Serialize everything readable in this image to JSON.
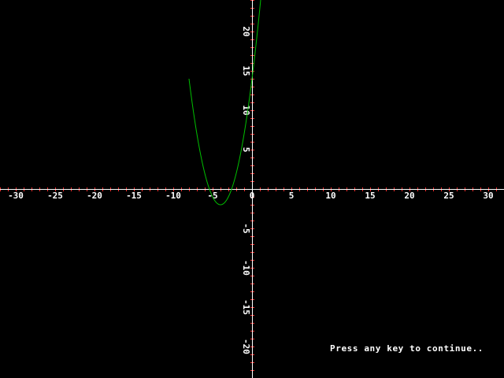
{
  "prompt_text": "Press any key to continue..",
  "colors": {
    "background": "#000000",
    "axis": "#ffffff",
    "tick_marks": "#ff3030",
    "curve": "#00c000",
    "labels": "#ffffff"
  },
  "chart_data": {
    "type": "line",
    "title": "",
    "xlabel": "",
    "ylabel": "",
    "xlim": [
      -32,
      32
    ],
    "ylim": [
      -24,
      24
    ],
    "grid": false,
    "x_ticks": [
      -30,
      -25,
      -20,
      -15,
      -10,
      -5,
      0,
      5,
      10,
      15,
      20,
      25,
      30
    ],
    "y_ticks": [
      -20,
      -15,
      -10,
      -5,
      5,
      10,
      15,
      20
    ],
    "series": [
      {
        "function": "y = x^2 + 8x + 14",
        "x_range": [
          -8,
          2
        ],
        "vertex": [
          -4,
          -2
        ],
        "x_intercepts": [
          -5.41,
          -2.59
        ],
        "y_intercept": 14
      }
    ]
  }
}
